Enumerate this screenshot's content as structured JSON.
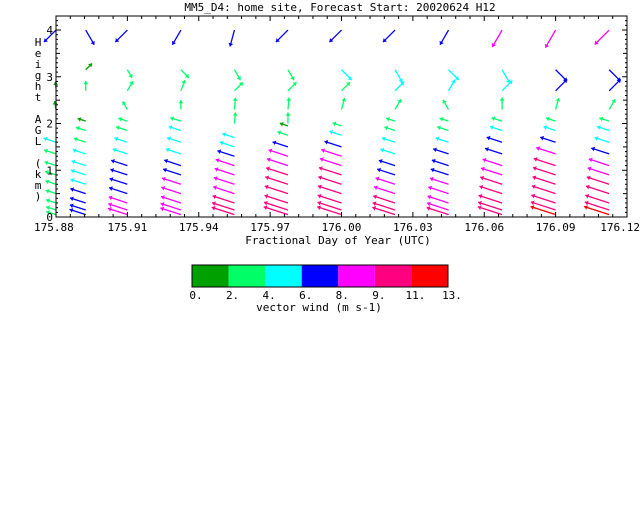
{
  "chart_data": {
    "type": "vector-wind-profile",
    "title": "MM5_D4: home site,  Forecast Start: 20020624 H12",
    "xlabel": "Fractional Day of Year (UTC)",
    "ylabel": "Height AGL (km)",
    "x_ticks": [
      "175.88",
      "175.91",
      "175.94",
      "175.97",
      "176.00",
      "176.03",
      "176.06",
      "176.09",
      "176.12"
    ],
    "y_ticks": [
      "0",
      "1",
      "2",
      "3",
      "4"
    ],
    "xlim": [
      175.88,
      176.12
    ],
    "ylim": [
      0,
      4.3
    ],
    "colorbar": {
      "label": "vector wind (m s-1)",
      "ticks": [
        "0.",
        "2.",
        "4.",
        "6.",
        "8.",
        "9.",
        "11.",
        "13."
      ],
      "colors": [
        "#00a000",
        "#00ff66",
        "#00ffff",
        "#0000ff",
        "#ff00ff",
        "#ff0080",
        "#ff0000"
      ]
    },
    "columns": [
      {
        "x": 175.88,
        "low": [
          [
            0.05,
            2.5
          ],
          [
            0.15,
            2.6
          ],
          [
            0.3,
            2.6
          ],
          [
            0.5,
            2.8
          ],
          [
            0.7,
            3
          ],
          [
            0.9,
            3.2
          ],
          [
            1.1,
            3.5
          ],
          [
            1.35,
            3.8
          ],
          [
            1.6,
            4.2
          ]
        ],
        "upper": [
          {
            "h": 2.3,
            "dir": 100,
            "s": 1.5
          },
          {
            "h": 2.75,
            "dir": 95,
            "s": 0.5
          },
          {
            "h": 4.0,
            "dir": 225,
            "s": 6.5
          }
        ]
      },
      {
        "x": 175.8925,
        "low": [
          [
            0.05,
            6.5
          ],
          [
            0.15,
            6.3
          ],
          [
            0.3,
            6.2
          ],
          [
            0.5,
            6
          ],
          [
            0.7,
            5.8
          ],
          [
            0.9,
            5.6
          ],
          [
            1.1,
            5.2
          ],
          [
            1.35,
            4.5
          ],
          [
            1.6,
            3.8
          ],
          [
            1.85,
            2.5
          ],
          [
            2.05,
            1.5
          ]
        ],
        "upper": [
          {
            "h": 2.7,
            "dir": 90,
            "s": 2.2
          },
          {
            "h": 3.15,
            "dir": 45,
            "s": 1.7
          },
          {
            "h": 4.0,
            "dir": 300,
            "s": 6.5
          }
        ]
      },
      {
        "x": 175.91,
        "low": [
          [
            0.05,
            8.5
          ],
          [
            0.15,
            8.3
          ],
          [
            0.3,
            8
          ],
          [
            0.5,
            7.8
          ],
          [
            0.7,
            7.5
          ],
          [
            0.9,
            7
          ],
          [
            1.1,
            6.5
          ],
          [
            1.35,
            5.5
          ],
          [
            1.6,
            4.5
          ],
          [
            1.85,
            3.5
          ],
          [
            2.05,
            2
          ]
        ],
        "upper": [
          {
            "h": 2.3,
            "dir": 120,
            "s": 2.0
          },
          {
            "h": 2.7,
            "dir": 60,
            "s": 3.0
          },
          {
            "h": 3.15,
            "dir": 300,
            "s": 2.0
          },
          {
            "h": 4.0,
            "dir": 225,
            "s": 6.5
          }
        ]
      },
      {
        "x": 175.9325,
        "low": [
          [
            0.05,
            9.2
          ],
          [
            0.15,
            9
          ],
          [
            0.3,
            8.8
          ],
          [
            0.5,
            8.6
          ],
          [
            0.7,
            8.2
          ],
          [
            0.9,
            7.5
          ],
          [
            1.1,
            6.8
          ],
          [
            1.35,
            5.8
          ],
          [
            1.6,
            5
          ],
          [
            1.85,
            4
          ],
          [
            2.05,
            3
          ]
        ],
        "upper": [
          {
            "h": 2.3,
            "dir": 90,
            "s": 2.0
          },
          {
            "h": 2.7,
            "dir": 70,
            "s": 3.2
          },
          {
            "h": 3.15,
            "dir": 315,
            "s": 3.2
          },
          {
            "h": 4.0,
            "dir": 240,
            "s": 6.5
          }
        ]
      },
      {
        "x": 175.955,
        "low": [
          [
            0.05,
            10.5
          ],
          [
            0.15,
            10.3
          ],
          [
            0.3,
            10
          ],
          [
            0.5,
            9.6
          ],
          [
            0.7,
            9.2
          ],
          [
            0.9,
            8.7
          ],
          [
            1.1,
            8
          ],
          [
            1.3,
            7
          ],
          [
            1.5,
            5.5
          ],
          [
            1.7,
            4
          ]
        ],
        "upper": [
          {
            "h": 2.0,
            "dir": 85,
            "s": 3.0
          },
          {
            "h": 2.3,
            "dir": 85,
            "s": 3.5
          },
          {
            "h": 2.7,
            "dir": 45,
            "s": 3.5
          },
          {
            "h": 3.15,
            "dir": 300,
            "s": 3.5
          },
          {
            "h": 4.0,
            "dir": 255,
            "s": 6.5
          }
        ]
      },
      {
        "x": 175.9775,
        "low": [
          [
            0.05,
            11.5
          ],
          [
            0.15,
            11.3
          ],
          [
            0.3,
            11
          ],
          [
            0.5,
            10.8
          ],
          [
            0.7,
            10.5
          ],
          [
            0.9,
            10
          ],
          [
            1.1,
            9.5
          ],
          [
            1.3,
            8.5
          ],
          [
            1.5,
            6
          ],
          [
            1.75,
            3
          ],
          [
            1.95,
            1.5
          ]
        ],
        "upper": [
          {
            "h": 2.0,
            "dir": 90,
            "s": 3.0
          },
          {
            "h": 2.3,
            "dir": 85,
            "s": 3.5
          },
          {
            "h": 2.7,
            "dir": 45,
            "s": 3.6
          },
          {
            "h": 3.15,
            "dir": 300,
            "s": 3.5
          },
          {
            "h": 4.0,
            "dir": 225,
            "s": 6.5
          }
        ]
      },
      {
        "x": 176.0,
        "low": [
          [
            0.05,
            11.5
          ],
          [
            0.15,
            11.3
          ],
          [
            0.3,
            11.2
          ],
          [
            0.5,
            11
          ],
          [
            0.7,
            10.8
          ],
          [
            0.9,
            10.4
          ],
          [
            1.1,
            9.8
          ],
          [
            1.3,
            9
          ],
          [
            1.5,
            7
          ],
          [
            1.75,
            4
          ],
          [
            1.95,
            2
          ]
        ],
        "upper": [
          {
            "h": 2.3,
            "dir": 75,
            "s": 3.5
          },
          {
            "h": 2.7,
            "dir": 45,
            "s": 3.6
          },
          {
            "h": 3.15,
            "dir": 315,
            "s": 5.0
          },
          {
            "h": 4.0,
            "dir": 225,
            "s": 6.5
          }
        ]
      },
      {
        "x": 176.0225,
        "low": [
          [
            0.05,
            10.5
          ],
          [
            0.15,
            10.3
          ],
          [
            0.3,
            10
          ],
          [
            0.5,
            9.5
          ],
          [
            0.7,
            8.5
          ],
          [
            0.9,
            7.5
          ],
          [
            1.1,
            6.5
          ],
          [
            1.35,
            5.5
          ],
          [
            1.6,
            4.5
          ],
          [
            1.85,
            3
          ],
          [
            2.05,
            2
          ]
        ],
        "upper": [
          {
            "h": 2.3,
            "dir": 60,
            "s": 3.5
          },
          {
            "h": 2.7,
            "dir": 45,
            "s": 4.0
          },
          {
            "h": 3.15,
            "dir": 300,
            "s": 5.0
          },
          {
            "h": 4.0,
            "dir": 225,
            "s": 6.5
          }
        ]
      },
      {
        "x": 176.045,
        "low": [
          [
            0.05,
            10
          ],
          [
            0.15,
            9.8
          ],
          [
            0.3,
            9.5
          ],
          [
            0.5,
            9
          ],
          [
            0.7,
            8
          ],
          [
            0.9,
            7.5
          ],
          [
            1.1,
            6.8
          ],
          [
            1.35,
            6
          ],
          [
            1.6,
            4.5
          ],
          [
            1.85,
            3.5
          ],
          [
            2.05,
            2
          ]
        ],
        "upper": [
          {
            "h": 2.3,
            "dir": 120,
            "s": 3.0
          },
          {
            "h": 2.7,
            "dir": 60,
            "s": 4.0
          },
          {
            "h": 3.15,
            "dir": 315,
            "s": 5.0
          },
          {
            "h": 4.0,
            "dir": 240,
            "s": 6.5
          }
        ]
      },
      {
        "x": 176.0675,
        "low": [
          [
            0.05,
            11.5
          ],
          [
            0.15,
            11.3
          ],
          [
            0.3,
            11
          ],
          [
            0.5,
            10.5
          ],
          [
            0.7,
            10
          ],
          [
            0.9,
            9.5
          ],
          [
            1.1,
            8.5
          ],
          [
            1.35,
            7
          ],
          [
            1.6,
            6
          ],
          [
            1.85,
            4
          ],
          [
            2.05,
            3
          ]
        ],
        "upper": [
          {
            "h": 2.3,
            "dir": 90,
            "s": 3.5
          },
          {
            "h": 2.7,
            "dir": 45,
            "s": 5.0
          },
          {
            "h": 3.15,
            "dir": 300,
            "s": 5.5
          },
          {
            "h": 4.0,
            "dir": 240,
            "s": 8.0
          }
        ]
      },
      {
        "x": 176.09,
        "low": [
          [
            0.05,
            12
          ],
          [
            0.15,
            11.8
          ],
          [
            0.3,
            11.5
          ],
          [
            0.5,
            11.2
          ],
          [
            0.7,
            10.8
          ],
          [
            0.9,
            10.5
          ],
          [
            1.1,
            10
          ],
          [
            1.35,
            8.5
          ],
          [
            1.6,
            6
          ],
          [
            1.85,
            4
          ],
          [
            2.05,
            2.5
          ]
        ],
        "upper": [
          {
            "h": 2.3,
            "dir": 75,
            "s": 3.5
          },
          {
            "h": 2.7,
            "dir": 45,
            "s": 6.0
          },
          {
            "h": 3.15,
            "dir": 315,
            "s": 6.0
          },
          {
            "h": 4.0,
            "dir": 240,
            "s": 8.5
          }
        ]
      },
      {
        "x": 176.1125,
        "low": [
          [
            0.05,
            12
          ],
          [
            0.15,
            11.5
          ],
          [
            0.3,
            11.2
          ],
          [
            0.5,
            10.8
          ],
          [
            0.7,
            10.3
          ],
          [
            0.9,
            9.8
          ],
          [
            1.1,
            9
          ],
          [
            1.35,
            7.5
          ],
          [
            1.6,
            5.5
          ],
          [
            1.85,
            4
          ],
          [
            2.05,
            2.5
          ]
        ],
        "upper": [
          {
            "h": 2.3,
            "dir": 60,
            "s": 3.5
          },
          {
            "h": 2.7,
            "dir": 45,
            "s": 6.0
          },
          {
            "h": 3.15,
            "dir": 315,
            "s": 6.0
          },
          {
            "h": 4.0,
            "dir": 225,
            "s": 8.5
          }
        ]
      }
    ]
  }
}
